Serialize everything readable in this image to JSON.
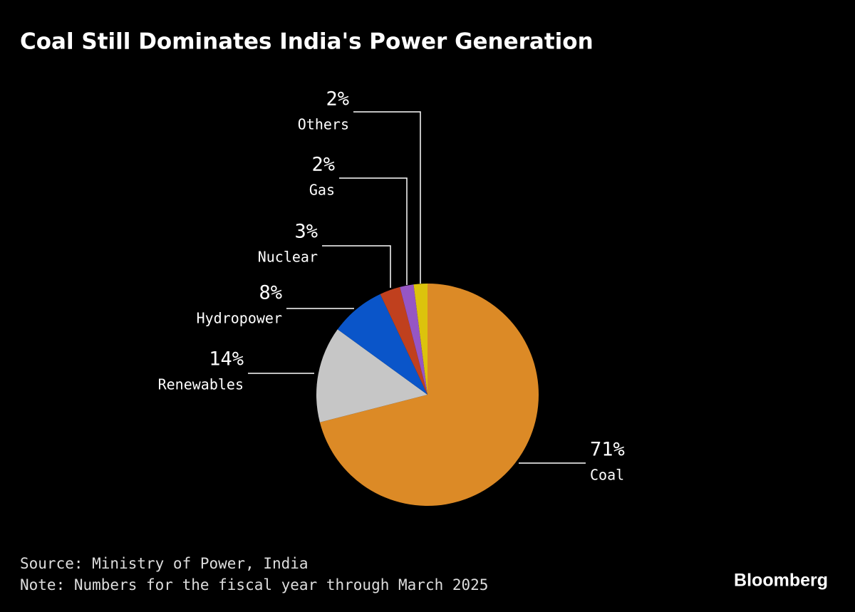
{
  "chart_data": {
    "type": "pie",
    "title": "Coal Still Dominates India's Power Generation",
    "categories": [
      "Coal",
      "Renewables",
      "Hydropower",
      "Nuclear",
      "Gas",
      "Others"
    ],
    "values": [
      71,
      14,
      8,
      3,
      2,
      2
    ],
    "value_labels": [
      "71%",
      "14%",
      "8%",
      "3%",
      "2%",
      "2%"
    ],
    "colors": [
      "#dc8a26",
      "#c6c6c6",
      "#0a55c9",
      "#c0401e",
      "#9656c4",
      "#dcc30c"
    ],
    "source": "Source: Ministry of Power, India",
    "note": "Note: Numbers for the fiscal year through March 2025",
    "brand": "Bloomberg"
  }
}
